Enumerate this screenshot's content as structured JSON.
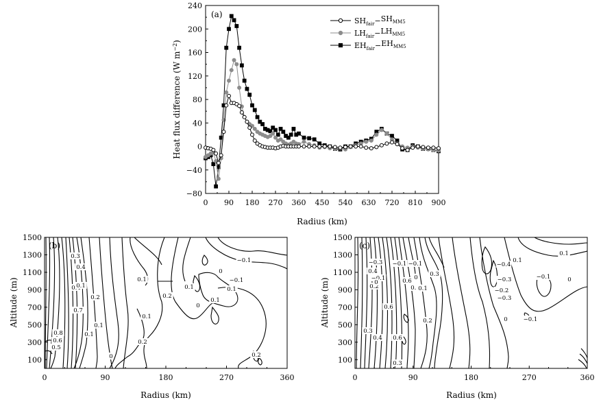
{
  "chart_data": [
    {
      "id": "a",
      "type": "line",
      "panel_label": "(a)",
      "xlabel": "Radius (km)",
      "ylabel": "Heat  flux  difference  (W m",
      "ylabel_sup": "−2",
      "ylabel_close": ")",
      "xlim": [
        0,
        900
      ],
      "ylim": [
        -80,
        240
      ],
      "xticks": [
        "0",
        "90",
        "180",
        "270",
        "360",
        "450",
        "540",
        "630",
        "720",
        "810",
        "900"
      ],
      "yticks": [
        "−80",
        "−40",
        "0",
        "40",
        "80",
        "120",
        "160",
        "200",
        "240"
      ],
      "series": [
        {
          "name": "SH_fair−SH_MM5",
          "legend": {
            "a": "SH",
            "a_sub": "fair",
            "dash": "−",
            "b": "SH",
            "b_sub": "MM5"
          },
          "color": "#000000",
          "marker": "open-circle",
          "x": [
            0,
            10,
            20,
            30,
            40,
            50,
            60,
            70,
            80,
            90,
            100,
            110,
            120,
            130,
            140,
            150,
            160,
            170,
            180,
            190,
            200,
            210,
            220,
            230,
            240,
            250,
            260,
            270,
            280,
            290,
            300,
            310,
            320,
            330,
            340,
            350,
            360,
            380,
            400,
            420,
            440,
            460,
            480,
            500,
            520,
            540,
            560,
            580,
            600,
            620,
            640,
            660,
            680,
            700,
            720,
            740,
            760,
            780,
            800,
            820,
            840,
            860,
            880,
            900
          ],
          "values": [
            -2,
            -3,
            -4,
            -6,
            -12,
            -28,
            -15,
            25,
            70,
            86,
            74,
            74,
            72,
            69,
            58,
            50,
            42,
            32,
            20,
            10,
            5,
            2,
            0,
            -1,
            -2,
            -2,
            -2,
            -3,
            -2,
            0,
            1,
            0,
            0,
            0,
            0,
            0,
            0,
            0,
            0,
            0,
            0,
            0,
            0,
            -1,
            -2,
            -1,
            0,
            0,
            0,
            -2,
            -3,
            -1,
            2,
            5,
            7,
            4,
            -3,
            -6,
            -2,
            0,
            -1,
            -2,
            -2,
            -3
          ]
        },
        {
          "name": "LH_fair−LH_MM5",
          "legend": {
            "a": "LH",
            "a_sub": "fair",
            "dash": "−",
            "b": "LH",
            "b_sub": "MM5"
          },
          "color": "#8c8c8c",
          "marker": "filled-circle",
          "x": [
            0,
            10,
            20,
            30,
            40,
            50,
            60,
            70,
            80,
            90,
            100,
            110,
            120,
            130,
            140,
            150,
            160,
            170,
            180,
            190,
            200,
            210,
            220,
            230,
            240,
            250,
            260,
            270,
            280,
            290,
            300,
            310,
            320,
            330,
            340,
            350,
            360,
            380,
            400,
            420,
            440,
            460,
            480,
            500,
            520,
            540,
            560,
            580,
            600,
            620,
            640,
            660,
            680,
            700,
            720,
            740,
            760,
            780,
            800,
            820,
            840,
            860,
            880,
            900
          ],
          "values": [
            -18,
            -15,
            -12,
            -10,
            -25,
            -55,
            -20,
            45,
            92,
            112,
            130,
            147,
            140,
            100,
            68,
            50,
            42,
            38,
            35,
            30,
            25,
            22,
            20,
            18,
            16,
            18,
            22,
            15,
            10,
            12,
            8,
            5,
            3,
            5,
            8,
            5,
            4,
            8,
            4,
            2,
            -2,
            -1,
            -3,
            -4,
            -3,
            -5,
            -1,
            2,
            5,
            8,
            10,
            20,
            28,
            22,
            12,
            5,
            0,
            -2,
            0,
            -2,
            -4,
            -5,
            -6,
            -7
          ]
        },
        {
          "name": "EH_fair−EH_MM5",
          "legend": {
            "a": "EH",
            "a_sub": "fair",
            "dash": "−",
            "b": "EH",
            "b_sub": "MM5"
          },
          "color": "#000000",
          "marker": "filled-square",
          "x": [
            0,
            10,
            20,
            30,
            40,
            50,
            60,
            70,
            80,
            90,
            100,
            110,
            120,
            130,
            140,
            150,
            160,
            170,
            180,
            190,
            200,
            210,
            220,
            230,
            240,
            250,
            260,
            270,
            280,
            290,
            300,
            310,
            320,
            330,
            340,
            350,
            360,
            380,
            400,
            420,
            440,
            460,
            480,
            500,
            520,
            540,
            560,
            580,
            600,
            620,
            640,
            660,
            680,
            700,
            720,
            740,
            760,
            780,
            800,
            820,
            840,
            860,
            880,
            900
          ],
          "values": [
            -20,
            -18,
            -15,
            -30,
            -68,
            -35,
            15,
            70,
            168,
            200,
            222,
            215,
            205,
            168,
            138,
            112,
            98,
            88,
            70,
            62,
            50,
            42,
            38,
            30,
            28,
            26,
            32,
            28,
            20,
            30,
            25,
            18,
            15,
            20,
            30,
            20,
            22,
            15,
            14,
            12,
            5,
            2,
            0,
            -4,
            -5,
            0,
            0,
            5,
            8,
            10,
            13,
            25,
            30,
            22,
            18,
            10,
            -5,
            -6,
            2,
            0,
            -4,
            -4,
            -6,
            -8
          ]
        }
      ]
    },
    {
      "id": "b",
      "type": "contour",
      "panel_label": "(b)",
      "xlabel": "Radius (km)",
      "ylabel": "Altitude  (m)",
      "xlim": [
        0,
        360
      ],
      "ylim": [
        0,
        1500
      ],
      "xticks": [
        "0",
        "90",
        "180",
        "270",
        "360"
      ],
      "yticks": [
        "100",
        "300",
        "500",
        "700",
        "900",
        "1100",
        "1300",
        "1500"
      ],
      "contour_labels": [
        "0.3",
        "0.4",
        "0.4",
        "0.7",
        "0.8",
        "0.6",
        "0.5",
        "0.1",
        "0.2",
        "0.1",
        "0.1",
        "0.1",
        "0.2",
        "0.1",
        "0.2",
        "−0.1",
        "0",
        "0.1",
        "0",
        "0.1",
        "0.1",
        "−0.1",
        "0",
        "0.2"
      ]
    },
    {
      "id": "c",
      "type": "contour",
      "panel_label": "(c)",
      "xlabel": "Radius (km)",
      "ylabel": "Altitude  (m)",
      "xlim": [
        0,
        360
      ],
      "ylim": [
        0,
        1500
      ],
      "xticks": [
        "0",
        "90",
        "180",
        "270",
        "360"
      ],
      "yticks": [
        "100",
        "300",
        "500",
        "700",
        "900",
        "1100",
        "1300",
        "1500"
      ],
      "contour_labels": [
        "−0.3",
        "−0.1",
        "−0.1",
        "0",
        "0.6",
        "0.1",
        "0.2",
        "0.6",
        "0.3",
        "0.4",
        "0.6",
        "0.3",
        "−0.1",
        "0.4",
        "0",
        "0.3",
        "0.1",
        "0.2",
        "−0.3",
        "−0.4",
        "−0.3",
        "−0.2",
        "0.1",
        "0.1",
        "−0.1",
        "0",
        "0",
        "−0.1"
      ]
    }
  ]
}
